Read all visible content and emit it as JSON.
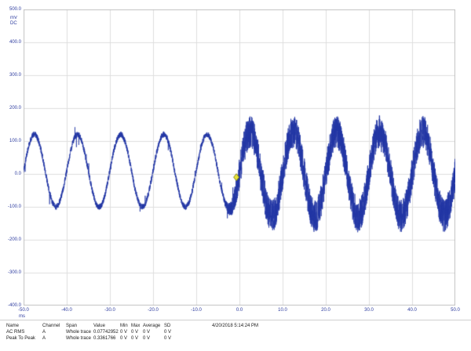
{
  "axis": {
    "unit_y": "mV",
    "coupling": "DC",
    "unit_x": "ms",
    "yticks": [
      "500.0",
      "400.0",
      "300.0",
      "200.0",
      "100.0",
      "0.0",
      "-100.0",
      "-200.0",
      "-300.0",
      "-400.0"
    ],
    "xticks": [
      "-50.0",
      "-40.0",
      "-30.0",
      "-20.0",
      "-10.0",
      "0.0",
      "10.0",
      "20.0",
      "30.0",
      "40.0",
      "50.0"
    ]
  },
  "chart_data": {
    "type": "line",
    "title": "",
    "xlabel": "ms",
    "ylabel": "mV",
    "xlim": [
      -50,
      50
    ],
    "ylim": [
      -400,
      500
    ],
    "x_tick_step_ms": 10,
    "y_tick_step_mV": 100,
    "grid": true,
    "legend": "none",
    "colors": {
      "trace": "#2236a4",
      "grid": "#dedede",
      "border": "#c2c2c2",
      "axis_text": "#2b3a9e",
      "marker_fill": "#e8e337",
      "marker_stroke": "#6b6b00",
      "background": "#ffffff"
    },
    "series": [
      {
        "name": "Channel A",
        "description": "Noisy 100 Hz sine wave; low noise on left half of record, heavy noise after ~0 ms",
        "signal": {
          "period_ms": 10,
          "amplitude_left_mV": 110,
          "amplitude_right_mV": 128,
          "offset_left_mV": 10,
          "offset_right_mV": 0,
          "noise_left_mV": 9,
          "noise_right_mV": 50,
          "spike_probability": 0.012,
          "spike_mV": 34,
          "transition_start_ms": -4,
          "transition_end_ms": 1
        }
      }
    ],
    "marker": {
      "shape": "diamond",
      "x_ms": -0.7,
      "y_mV": -10
    }
  },
  "measurements": {
    "headers": [
      "Name",
      "Channel",
      "Span",
      "Value",
      "Min",
      "Max",
      "Average",
      "SD"
    ],
    "rows": [
      {
        "name": "AC RMS",
        "channel": "A",
        "span": "Whole trace",
        "value": "0.07742952",
        "min": "0 V",
        "max": "0 V",
        "average": "0 V",
        "sd": "0 V"
      },
      {
        "name": "Peak To Peak",
        "channel": "A",
        "span": "Whole trace",
        "value": "0.3361766",
        "min": "0 V",
        "max": "0 V",
        "average": "0 V",
        "sd": "0 V"
      }
    ],
    "timestamp": "4/20/2018 5:14:24 PM"
  }
}
